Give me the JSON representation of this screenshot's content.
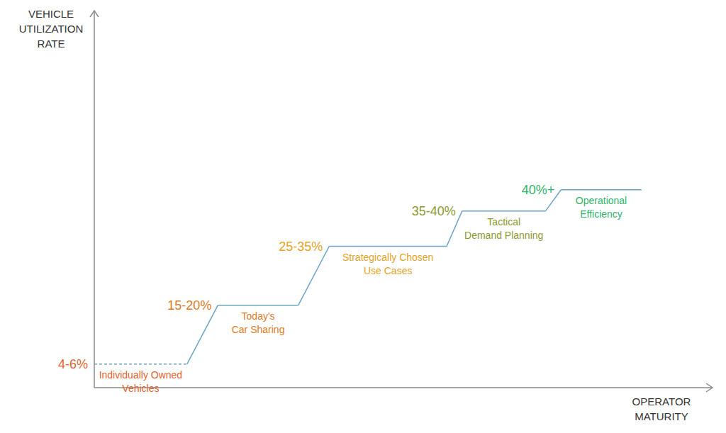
{
  "chart_data": {
    "type": "line",
    "x_label": "OPERATOR MATURITY",
    "y_label": "VEHICLE UTILIZATION RATE",
    "xlim": [
      0,
      100
    ],
    "ylim": [
      0,
      80
    ],
    "xticks": [],
    "yticks": [],
    "tick_labels": false,
    "grid": false,
    "color": "#6aa3c6",
    "series": [
      {
        "label": [
          "Individually Owned",
          "Vehicles"
        ],
        "annotation": "4-6%",
        "x": [
          0,
          15
        ],
        "values": [
          5,
          5
        ],
        "color": "#e2632b",
        "line_style": "dashed"
      },
      {
        "label": [
          "Today's",
          "Car Sharing"
        ],
        "annotation": "15-20%",
        "x": [
          20,
          33
        ],
        "values": [
          17.5,
          17.5
        ],
        "color": "#e07a22",
        "line_style": "solid"
      },
      {
        "label": [
          "Strategically Chosen",
          "Use Cases"
        ],
        "annotation": "25-35%",
        "x": [
          38,
          57
        ],
        "values": [
          30,
          30
        ],
        "color": "#e6a21e",
        "line_style": "solid"
      },
      {
        "label": [
          "Tactical",
          "Demand Planning"
        ],
        "annotation": "35-40%",
        "x": [
          59.5,
          73
        ],
        "values": [
          37.5,
          37.5
        ],
        "color": "#8c9a2c",
        "line_style": "solid"
      },
      {
        "label": [
          "Operational",
          "Efficiency"
        ],
        "annotation": "40%+",
        "x": [
          75.5,
          88.5
        ],
        "values": [
          42,
          42
        ],
        "color": "#2db36a",
        "line_style": "solid"
      }
    ]
  }
}
